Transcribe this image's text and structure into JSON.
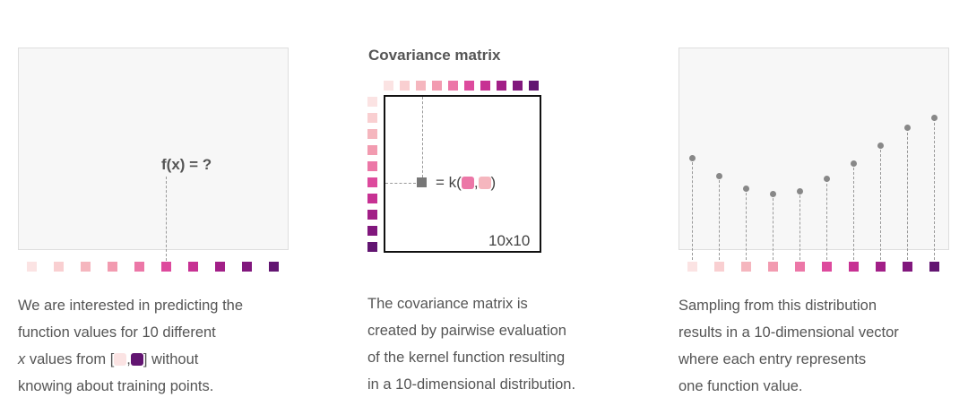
{
  "colors": [
    "#fbe3e3",
    "#f9cfd1",
    "#f5b6be",
    "#f29bb0",
    "#ec77a7",
    "#dd4a9d",
    "#c73193",
    "#a21f87",
    "#81177d",
    "#621571"
  ],
  "panel1": {
    "label": "f(x) = ?",
    "caption": {
      "line1": "We are interested in predicting the",
      "line2": "function values for 10 different",
      "line3_x": "x",
      "line3_pre": " values from [",
      "line3_comma": ",",
      "line3_post": "] without",
      "line4": "knowing about training points."
    }
  },
  "panel2": {
    "title": "Covariance matrix",
    "kernel_prefix": "= k(",
    "kernel_comma": ",",
    "kernel_suffix": ")",
    "size_label": "10x10",
    "caption": {
      "line1": "The covariance matrix is",
      "line2": "created by pairwise evaluation",
      "line3": "of the kernel function resulting",
      "line4": "in a 10-dimensional distribution."
    }
  },
  "panel3": {
    "sample_values": [
      0.71,
      0.585,
      0.5,
      0.46,
      0.48,
      0.565,
      0.675,
      0.8,
      0.92,
      0.99
    ],
    "caption": {
      "line1": "Sampling from this distribution",
      "line2": "results in a 10-dimensional vector",
      "line3": "where each entry represents",
      "line4": "one function value."
    }
  }
}
